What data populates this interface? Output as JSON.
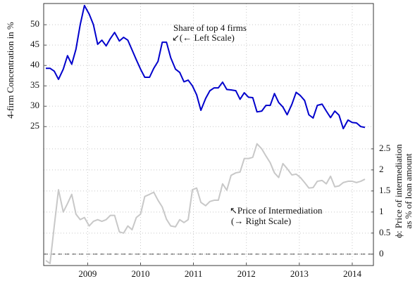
{
  "chart_data": {
    "type": "line",
    "y_label": "4-firm Concentration in %",
    "y2_label": [
      "ϕ: Price of intermediation",
      "as % of loan amount"
    ],
    "annotations": [
      {
        "lines": [
          "Share of top 4 firms",
          "↙(← Left Scale)"
        ]
      },
      {
        "lines": [
          "↖Price of Intermediation",
          "(→ Right Scale)"
        ]
      }
    ],
    "x": [
      2008.21,
      2008.29,
      2008.37,
      2008.45,
      2008.54,
      2008.62,
      2008.7,
      2008.78,
      2008.86,
      2008.94,
      2009.03,
      2009.11,
      2009.19,
      2009.27,
      2009.35,
      2009.43,
      2009.51,
      2009.6,
      2009.68,
      2009.76,
      2009.84,
      2009.92,
      2010.0,
      2010.08,
      2010.17,
      2010.25,
      2010.33,
      2010.41,
      2010.49,
      2010.57,
      2010.66,
      2010.74,
      2010.82,
      2010.9,
      2010.98,
      2011.06,
      2011.14,
      2011.23,
      2011.31,
      2011.39,
      2011.47,
      2011.55,
      2011.63,
      2011.71,
      2011.8,
      2011.88,
      2011.96,
      2012.04,
      2012.12,
      2012.2,
      2012.29,
      2012.37,
      2012.45,
      2012.53,
      2012.61,
      2012.69,
      2012.77,
      2012.86,
      2012.94,
      2013.02,
      2013.1,
      2013.18,
      2013.26,
      2013.34,
      2013.43,
      2013.51,
      2013.59,
      2013.67,
      2013.75,
      2013.83,
      2013.92,
      2014.0,
      2014.08,
      2014.16,
      2014.24
    ],
    "series": [
      {
        "color": "#0000cc",
        "axis": "y",
        "values": [
          39.3,
          39.3,
          38.6,
          36.6,
          39.1,
          42.4,
          40.3,
          44.0,
          50.0,
          54.7,
          52.6,
          50.0,
          45.2,
          46.2,
          44.8,
          46.6,
          48.1,
          46.0,
          46.9,
          46.2,
          43.8,
          41.4,
          39.1,
          37.1,
          37.1,
          39.3,
          41.0,
          45.7,
          45.7,
          41.9,
          39.1,
          38.3,
          36.0,
          36.4,
          35.0,
          32.8,
          29.0,
          31.9,
          33.8,
          34.5,
          34.5,
          35.9,
          34.1,
          34.0,
          33.8,
          31.7,
          33.3,
          32.2,
          32.1,
          28.6,
          28.8,
          30.2,
          30.2,
          33.1,
          30.9,
          29.8,
          27.9,
          30.5,
          33.4,
          32.6,
          31.4,
          27.9,
          27.1,
          30.2,
          30.5,
          28.8,
          27.2,
          28.8,
          27.8,
          24.5,
          26.6,
          26.0,
          25.9,
          25.0,
          24.8
        ]
      },
      {
        "color": "#c8c8c8",
        "axis": "y2",
        "values": [
          -0.15,
          -0.22,
          0.67,
          1.53,
          1.0,
          1.2,
          1.42,
          0.95,
          0.82,
          0.87,
          0.67,
          0.78,
          0.82,
          0.78,
          0.82,
          0.92,
          0.92,
          0.53,
          0.5,
          0.67,
          0.58,
          0.87,
          0.95,
          1.37,
          1.42,
          1.47,
          1.28,
          1.12,
          0.83,
          0.67,
          0.65,
          0.82,
          0.75,
          0.82,
          1.53,
          1.57,
          1.23,
          1.15,
          1.25,
          1.28,
          1.28,
          1.67,
          1.52,
          1.87,
          1.93,
          1.95,
          2.27,
          2.27,
          2.3,
          2.62,
          2.5,
          2.33,
          2.17,
          1.93,
          1.82,
          2.15,
          2.03,
          1.88,
          1.9,
          1.82,
          1.7,
          1.57,
          1.58,
          1.73,
          1.75,
          1.67,
          1.85,
          1.6,
          1.62,
          1.7,
          1.73,
          1.73,
          1.7,
          1.73,
          1.78
        ]
      }
    ],
    "xlim": [
      2008.17,
      2014.4
    ],
    "xticks": [
      2009,
      2010,
      2011,
      2012,
      2013,
      2014
    ],
    "ylim": [
      -9.1,
      55.2
    ],
    "yticks": [
      25,
      30,
      35,
      40,
      45,
      50
    ],
    "y2lim": [
      -0.27,
      5.95
    ],
    "y2ticks": [
      0,
      0.5,
      1,
      1.5,
      2,
      2.5
    ],
    "grid": true
  }
}
